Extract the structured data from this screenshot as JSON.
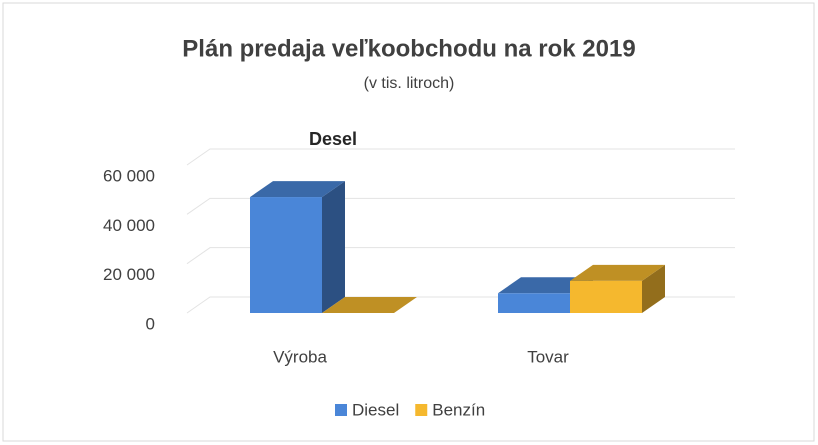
{
  "chart_data": {
    "type": "bar3d",
    "title": "Plán predaja veľkoobchodu na rok 2019",
    "subtitle": "(v tis. litroch)",
    "annotation": "Desel",
    "categories": [
      "Výroba",
      "Tovar"
    ],
    "series": [
      {
        "name": "Diesel",
        "color": "#4a86d8",
        "values": [
          47000,
          8000
        ]
      },
      {
        "name": "Benzín",
        "color": "#f5b82e",
        "values": [
          0,
          13000
        ]
      }
    ],
    "ylim": [
      0,
      60000
    ],
    "yticks": [
      0,
      {
        "value": 20000,
        "label": "20 000"
      },
      {
        "value": 40000,
        "label": "40 000"
      },
      {
        "value": 60000,
        "label": "60 000"
      }
    ],
    "grid": true,
    "legend": "bottom"
  }
}
